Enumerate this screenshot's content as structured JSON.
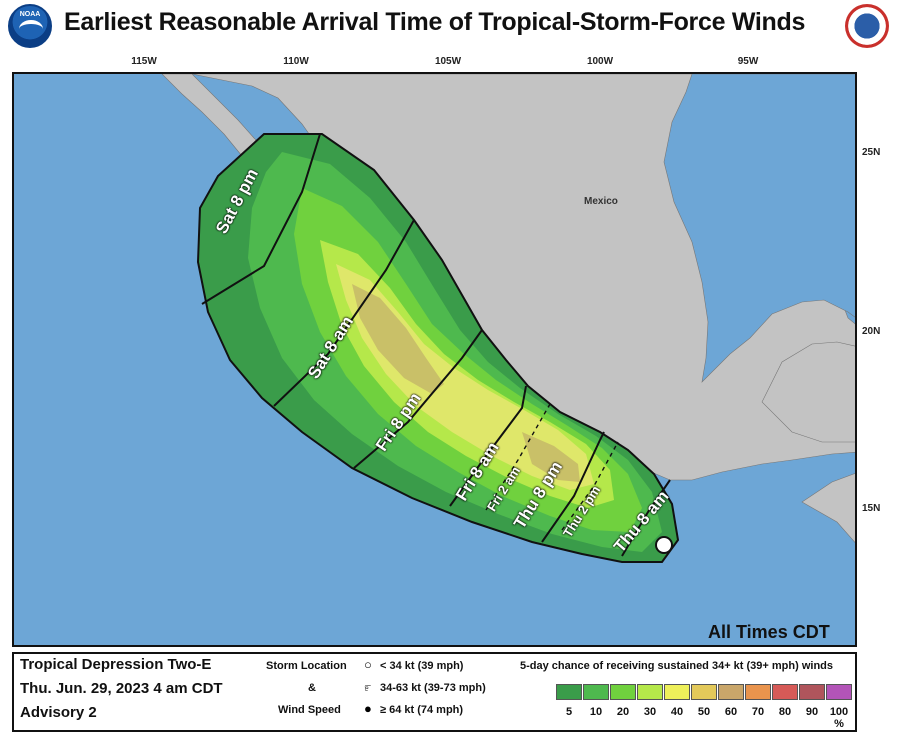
{
  "header": {
    "title": "Earliest Reasonable Arrival Time of Tropical-Storm-Force Winds",
    "left_logo": "NOAA",
    "right_logo": "NWS"
  },
  "map": {
    "country_label": "Mexico",
    "all_times_label": "All Times CDT",
    "lon_ticks": [
      "115W",
      "110W",
      "105W",
      "100W",
      "95W"
    ],
    "lat_ticks": [
      "25N",
      "20N",
      "15N"
    ],
    "colors": {
      "ocean": "#6da6d6",
      "land": "#c3c3c3",
      "c5": "#3a9c4a",
      "c10": "#4eb94e",
      "c20": "#70d13e",
      "c30": "#b5e84a",
      "c40": "#dfe76a",
      "c50": "#c9c068",
      "c60": "#b9a56c"
    },
    "time_labels": [
      "Sat 8 pm",
      "Sat 8 am",
      "Fri 8 pm",
      "Fri 8 am",
      "Fri 2 am",
      "Thu 8 pm",
      "Thu 2 pm",
      "Thu 8 am"
    ]
  },
  "legend": {
    "storm_name": "Tropical Depression Two-E",
    "date": "Thu. Jun. 29, 2023  4 am CDT",
    "advisory": "Advisory 2",
    "storm_location_label": "Storm Location",
    "amp": "&",
    "wind_speed_label": "Wind Speed",
    "wind_cat1": "< 34 kt (39 mph)",
    "wind_cat2": "34-63 kt (39-73 mph)",
    "wind_cat3": "≥ 64 kt (74 mph)",
    "chance_title": "5-day chance of receiving sustained 34+ kt (39+ mph) winds",
    "scale": [
      {
        "label": "5",
        "color": "#3a9c4a"
      },
      {
        "label": "10",
        "color": "#4eb94e"
      },
      {
        "label": "20",
        "color": "#70d13e"
      },
      {
        "label": "30",
        "color": "#b5e84a"
      },
      {
        "label": "40",
        "color": "#eef05a"
      },
      {
        "label": "50",
        "color": "#e3c95a"
      },
      {
        "label": "60",
        "color": "#c9a66a"
      },
      {
        "label": "70",
        "color": "#e9944d"
      },
      {
        "label": "80",
        "color": "#d65a57"
      },
      {
        "label": "90",
        "color": "#b0555c"
      },
      {
        "label": "100 %",
        "color": "#b354b8"
      }
    ]
  }
}
